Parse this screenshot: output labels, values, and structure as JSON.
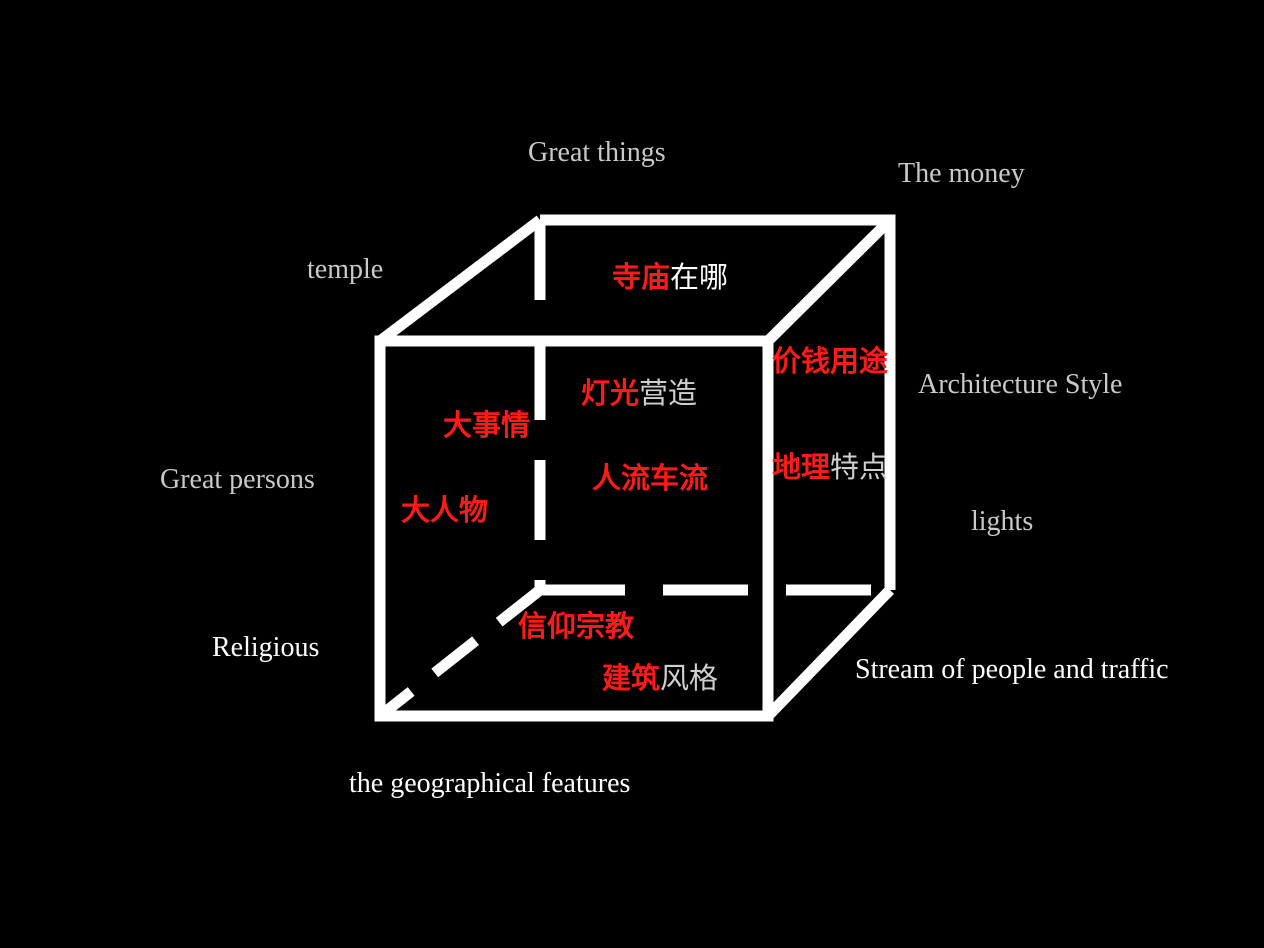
{
  "cube": {
    "line_color": "#ffffff"
  },
  "english_labels": {
    "great_things": "Great things",
    "the_money": "The  money",
    "temple": "temple",
    "architecture_style": "Architecture  Style",
    "great_persons": "Great persons",
    "lights": "lights",
    "religious": "Religious",
    "stream": "Stream of people  and  traffic",
    "geo_features": "the geographical features"
  },
  "chinese_labels": {
    "temple_where_red": "寺庙",
    "temple_where_rest": "在哪",
    "price_use": "价钱用途",
    "lighting_red": "灯光",
    "lighting_rest": "营造",
    "big_events": "大事情",
    "geo_red": "地理",
    "geo_rest": "特点",
    "traffic": "人流车流",
    "big_persons": "大人物",
    "religion": "信仰宗教",
    "arch_red": "建筑",
    "arch_rest": "风格"
  },
  "colors": {
    "red": "#ff1a1a",
    "gray": "#c9c9c9",
    "white": "#ffffff"
  }
}
